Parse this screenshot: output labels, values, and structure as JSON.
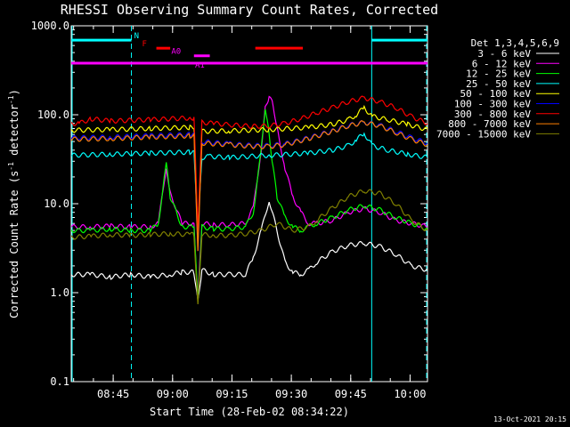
{
  "chart_data": {
    "type": "line",
    "title": "RHESSI Observing Summary Count Rates, Corrected",
    "xlabel": "Start Time (28-Feb-02 08:34:22)",
    "ylabel_main": "Corrected Count Rate (s",
    "ylabel_sup": "-1",
    "ylabel_end": " detector",
    "ylabel_sup2": "-1",
    "ylabel_close": ")",
    "yscale": "log",
    "xlim": [
      0,
      90
    ],
    "ylim": [
      0.1,
      1000
    ],
    "x_units": "minutes after 08:34:22",
    "xticks": [
      {
        "value": 10.6,
        "label": "08:45"
      },
      {
        "value": 25.6,
        "label": "09:00"
      },
      {
        "value": 40.6,
        "label": "09:15"
      },
      {
        "value": 55.6,
        "label": "09:30"
      },
      {
        "value": 70.6,
        "label": "09:45"
      },
      {
        "value": 85.6,
        "label": "10:00"
      }
    ],
    "yticks": [
      {
        "value": 0.1,
        "label": "0.1"
      },
      {
        "value": 1,
        "label": "1.0"
      },
      {
        "value": 10,
        "label": "10.0"
      },
      {
        "value": 100,
        "label": "100.0"
      },
      {
        "value": 1000,
        "label": "1000.0"
      }
    ],
    "legend_title": "Det 1,3,4,5,6,9",
    "series": [
      {
        "name": "3 - 6 keV",
        "color": "#ffffff",
        "x": [
          0,
          5,
          10,
          15,
          20,
          25,
          28,
          31,
          32,
          33,
          36,
          40,
          44,
          46,
          48,
          50,
          54,
          56,
          58,
          60,
          62,
          66,
          70,
          74,
          78,
          82,
          86,
          90
        ],
        "y": [
          1.6,
          1.6,
          1.5,
          1.6,
          1.5,
          1.6,
          1.7,
          1.7,
          0.8,
          1.8,
          1.6,
          1.6,
          1.6,
          2.5,
          5,
          11,
          2.2,
          1.7,
          1.6,
          1.8,
          2.2,
          2.9,
          3.4,
          3.6,
          3.3,
          2.7,
          2,
          1.8
        ]
      },
      {
        "name": "6 - 12 keV",
        "color": "#ff00ff",
        "x": [
          0,
          5,
          10,
          15,
          20,
          22,
          24,
          25,
          28,
          31,
          32,
          33,
          36,
          40,
          44,
          46,
          48,
          49,
          50,
          51,
          52,
          54,
          56,
          58,
          60,
          62,
          66,
          70,
          74,
          78,
          82,
          86,
          90
        ],
        "y": [
          5.5,
          5.5,
          5.6,
          5.5,
          5.5,
          6,
          26,
          13,
          6,
          6,
          0.8,
          6,
          5.8,
          5.8,
          6,
          9,
          40,
          120,
          160,
          130,
          70,
          25,
          12,
          8,
          6,
          6,
          6.5,
          8,
          8.8,
          8,
          6.5,
          6,
          5.5
        ]
      },
      {
        "name": "12 - 25 keV",
        "color": "#00ff00",
        "x": [
          0,
          5,
          10,
          15,
          20,
          22,
          24,
          25,
          28,
          31,
          32,
          33,
          36,
          40,
          44,
          46,
          48,
          49,
          50,
          51,
          52,
          54,
          56,
          58,
          60,
          62,
          66,
          70,
          74,
          78,
          82,
          86,
          90
        ],
        "y": [
          5,
          5,
          5.2,
          5,
          5,
          6,
          28,
          12,
          5.5,
          5.5,
          0.8,
          5.5,
          5.2,
          5.2,
          5.5,
          8,
          40,
          120,
          60,
          25,
          12,
          7,
          5.5,
          5,
          5.5,
          6,
          7,
          8.5,
          9.5,
          8.5,
          7,
          6,
          5.2
        ]
      },
      {
        "name": "25 - 50 keV",
        "color": "#00ffff",
        "x": [
          0,
          10,
          20,
          30,
          31,
          32,
          33,
          35,
          40,
          50,
          60,
          66,
          70,
          72,
          74,
          76,
          80,
          85,
          90
        ],
        "y": [
          35,
          36,
          37,
          38,
          38,
          5,
          33,
          34,
          33,
          35,
          37,
          40,
          45,
          52,
          62,
          45,
          40,
          36,
          33
        ]
      },
      {
        "name": "50 - 100 keV",
        "color": "#ffff00",
        "x": [
          0,
          10,
          20,
          30,
          31,
          32,
          33,
          40,
          50,
          60,
          66,
          70,
          72,
          74,
          76,
          80,
          85,
          90
        ],
        "y": [
          67,
          68,
          70,
          72,
          72,
          4,
          65,
          66,
          68,
          72,
          78,
          88,
          100,
          120,
          96,
          88,
          78,
          68
        ]
      },
      {
        "name": "100 - 300 keV",
        "color": "#0000ff",
        "x": [
          0,
          10,
          20,
          30,
          31,
          32,
          33,
          40,
          46,
          50,
          54,
          60,
          66,
          70,
          74,
          78,
          82,
          86,
          90
        ],
        "y": [
          55,
          56,
          58,
          60,
          60,
          3,
          50,
          47,
          45,
          45,
          47,
          55,
          66,
          76,
          82,
          76,
          65,
          55,
          48
        ]
      },
      {
        "name": "300 - 800 keV",
        "color": "#ff0000",
        "x": [
          0,
          2,
          5,
          10,
          20,
          30,
          31,
          32,
          33,
          36,
          40,
          46,
          50,
          54,
          58,
          62,
          66,
          70,
          74,
          78,
          82,
          86,
          90
        ],
        "y": [
          80,
          80,
          90,
          85,
          88,
          92,
          92,
          5,
          82,
          80,
          77,
          74,
          75,
          80,
          90,
          105,
          120,
          140,
          155,
          140,
          120,
          95,
          80
        ]
      },
      {
        "name": "800 - 7000 keV",
        "color": "#ff8000",
        "x": [
          0,
          10,
          20,
          30,
          31,
          32,
          33,
          40,
          46,
          50,
          54,
          60,
          66,
          70,
          74,
          78,
          82,
          86,
          90
        ],
        "y": [
          53,
          54,
          56,
          58,
          58,
          3,
          48,
          46,
          44,
          44,
          46,
          54,
          65,
          75,
          82,
          75,
          63,
          53,
          46
        ]
      },
      {
        "name": "7000 - 15000 keV",
        "color": "#808000",
        "x": [
          0,
          5,
          10,
          15,
          20,
          25,
          30,
          31,
          32,
          33,
          36,
          40,
          44,
          48,
          52,
          56,
          60,
          62,
          66,
          70,
          74,
          78,
          82,
          86,
          90
        ],
        "y": [
          4.2,
          4.3,
          4.5,
          4.4,
          4.5,
          4.6,
          4.5,
          4.5,
          0.7,
          4.5,
          4.4,
          4.4,
          4.6,
          5,
          6,
          5,
          5.5,
          6.5,
          9,
          12,
          14,
          13,
          10,
          6.5,
          5
        ]
      }
    ],
    "flags": [
      {
        "name": "SAA",
        "label": "N",
        "color": "#00ffff",
        "y": 690,
        "segments": [
          [
            0,
            15.2
          ],
          [
            75.9,
            90
          ]
        ]
      },
      {
        "name": "Flare",
        "label": "F",
        "color": "#ff0000",
        "y": 560,
        "segments": [
          [
            21.5,
            25
          ],
          [
            46.5,
            58.5
          ]
        ]
      },
      {
        "name": "Attenuator A0",
        "label": "A0",
        "color": "#ff00ff",
        "y": 460,
        "segments": [
          [
            31,
            35
          ]
        ]
      },
      {
        "name": "Attenuator A1",
        "label": "A1",
        "color": "#ff00ff",
        "y": 380,
        "segments": [
          [
            0,
            90
          ]
        ]
      }
    ],
    "verticals": [
      {
        "x": 0,
        "style": "solid",
        "color": "#00ffff"
      },
      {
        "x": 15.2,
        "style": "dashed",
        "color": "#00ffff"
      },
      {
        "x": 75.9,
        "style": "solid",
        "color": "#00ffff"
      },
      {
        "x": 90,
        "style": "dashed",
        "color": "#00ffff"
      }
    ]
  },
  "footer": {
    "timestamp": "13-Oct-2021 20:15"
  }
}
